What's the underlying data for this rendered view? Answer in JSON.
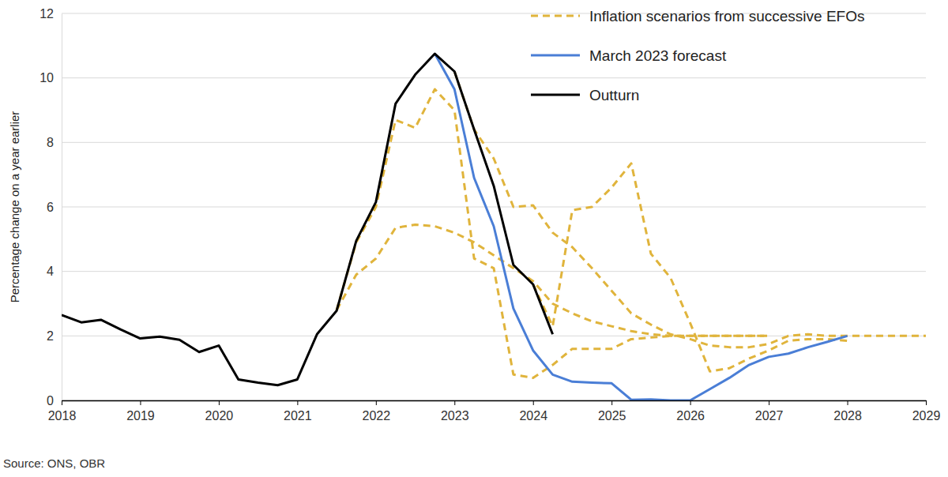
{
  "chart_data": {
    "type": "line",
    "y_label": "Percentage change on a year earlier",
    "source": "Source: ONS, OBR",
    "xlim": [
      2018,
      2029
    ],
    "xticks": [
      2018,
      2019,
      2020,
      2021,
      2022,
      2023,
      2024,
      2025,
      2026,
      2027,
      2028,
      2029
    ],
    "ylim": [
      0,
      12
    ],
    "yticks": [
      0,
      2,
      4,
      6,
      8,
      10,
      12
    ],
    "grid": true,
    "legend": "upper right",
    "series": [
      {
        "name": "Inflation scenarios from successive EFOs",
        "color": "#e0b43c",
        "line_style": "dashed",
        "scenarios": [
          {
            "x": [
              2021.5,
              2021.75,
              2022.0,
              2022.25,
              2022.5,
              2022.75,
              2023.0,
              2023.25,
              2023.5,
              2023.75,
              2024.0,
              2024.25,
              2024.5,
              2024.75,
              2025.0,
              2025.25,
              2025.5,
              2025.75,
              2026.0,
              2026.25,
              2026.5,
              2026.75,
              2027.0
            ],
            "values": [
              2.8,
              3.9,
              4.4,
              5.35,
              5.45,
              5.4,
              5.2,
              4.9,
              4.5,
              4.1,
              3.7,
              3.0,
              2.7,
              2.45,
              2.3,
              2.15,
              2.05,
              2.0,
              2.0,
              2.0,
              2.0,
              2.0,
              2.0
            ]
          },
          {
            "x": [
              2021.5,
              2021.75,
              2022.0,
              2022.25,
              2022.5,
              2022.75,
              2023.0,
              2023.25,
              2023.5,
              2023.75,
              2024.0,
              2024.25,
              2024.5,
              2024.75,
              2025.0,
              2025.25,
              2025.5,
              2025.75,
              2026.0,
              2026.25,
              2026.5,
              2026.75,
              2027.0
            ],
            "values": [
              2.8,
              4.9,
              6.0,
              8.7,
              8.45,
              9.65,
              9.0,
              4.4,
              4.1,
              0.8,
              0.7,
              1.1,
              1.6,
              1.6,
              1.6,
              1.9,
              1.95,
              2.0,
              2.0,
              2.0,
              2.0,
              2.0,
              2.0
            ]
          },
          {
            "x": [
              2023.0,
              2023.25,
              2023.5,
              2023.75,
              2024.0,
              2024.25,
              2024.5,
              2024.75,
              2025.0,
              2025.25,
              2025.5,
              2025.75,
              2026.0,
              2026.25,
              2026.5,
              2026.75,
              2027.0,
              2027.25,
              2027.5,
              2027.75,
              2028.0,
              2028.25,
              2028.5,
              2028.75,
              2029.0
            ],
            "values": [
              10.2,
              8.4,
              7.5,
              6.0,
              6.05,
              5.2,
              4.75,
              4.1,
              3.4,
              2.7,
              2.35,
              2.05,
              1.9,
              1.7,
              1.65,
              1.65,
              1.75,
              2.0,
              2.05,
              2.0,
              2.0,
              2.0,
              2.0,
              2.0,
              2.0
            ]
          },
          {
            "x": [
              2024.0,
              2024.25,
              2024.5,
              2024.75,
              2025.0,
              2025.25,
              2025.5,
              2025.75,
              2026.0,
              2026.25,
              2026.5,
              2026.75,
              2027.0,
              2027.25,
              2027.5,
              2027.75,
              2028.0
            ],
            "values": [
              3.6,
              2.3,
              5.9,
              6.0,
              6.6,
              7.35,
              4.55,
              3.8,
              2.4,
              0.9,
              1.0,
              1.3,
              1.55,
              1.85,
              1.9,
              1.9,
              1.85
            ]
          }
        ]
      },
      {
        "name": "March 2023 forecast",
        "color": "#4a7ed6",
        "line_style": "solid",
        "x": [
          2022.75,
          2023.0,
          2023.25,
          2023.5,
          2023.75,
          2024.0,
          2024.25,
          2024.5,
          2024.75,
          2025.0,
          2025.25,
          2025.5,
          2025.75,
          2026.0,
          2026.25,
          2026.5,
          2026.75,
          2027.0,
          2027.25,
          2027.5,
          2027.75,
          2028.0
        ],
        "values": [
          10.75,
          9.65,
          6.9,
          5.4,
          2.85,
          1.55,
          0.8,
          0.58,
          0.55,
          0.53,
          0.02,
          0.03,
          0.0,
          0.0,
          0.35,
          0.7,
          1.1,
          1.35,
          1.45,
          1.65,
          1.82,
          2.0
        ]
      },
      {
        "name": "Outturn",
        "color": "#000000",
        "line_style": "solid",
        "x": [
          2018.0,
          2018.25,
          2018.5,
          2018.75,
          2019.0,
          2019.25,
          2019.5,
          2019.75,
          2020.0,
          2020.25,
          2020.5,
          2020.75,
          2021.0,
          2021.25,
          2021.5,
          2021.75,
          2022.0,
          2022.25,
          2022.5,
          2022.75,
          2023.0,
          2023.25,
          2023.5,
          2023.75,
          2024.0,
          2024.25
        ],
        "values": [
          2.65,
          2.42,
          2.5,
          2.2,
          1.92,
          1.98,
          1.88,
          1.5,
          1.7,
          0.65,
          0.55,
          0.47,
          0.65,
          2.05,
          2.78,
          4.95,
          6.15,
          9.2,
          10.1,
          10.75,
          10.2,
          8.4,
          6.65,
          4.2,
          3.6,
          2.05
        ]
      }
    ]
  }
}
